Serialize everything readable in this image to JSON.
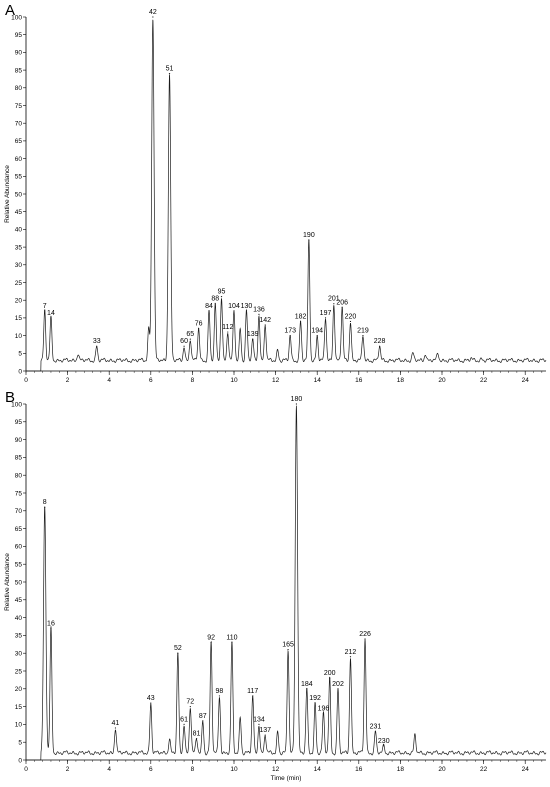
{
  "panels": [
    {
      "letter": "A",
      "ylabel": "Relative Abundance",
      "y_ticks": [
        0,
        5,
        10,
        15,
        20,
        25,
        30,
        35,
        40,
        45,
        50,
        55,
        60,
        65,
        70,
        75,
        80,
        85,
        90,
        95,
        100
      ],
      "x_ticks": [
        0,
        2,
        4,
        6,
        8,
        10,
        12,
        14,
        16,
        18,
        20,
        22,
        24
      ]
    },
    {
      "letter": "B",
      "ylabel": "Relative Abundance",
      "xlabel": "Time (min)",
      "y_ticks": [
        0,
        5,
        10,
        15,
        20,
        25,
        30,
        35,
        40,
        45,
        50,
        55,
        60,
        65,
        70,
        75,
        80,
        85,
        90,
        95,
        100
      ],
      "x_ticks": [
        0,
        2,
        4,
        6,
        8,
        10,
        12,
        14,
        16,
        18,
        20,
        22,
        24
      ]
    }
  ],
  "chart_data": [
    {
      "type": "line",
      "panel": "A",
      "xlim": [
        0,
        25
      ],
      "ylim": [
        0,
        100
      ],
      "ylabel": "Relative Abundance",
      "baseline": 3,
      "peaks": [
        {
          "x": 0.9,
          "y": 17,
          "label": "7"
        },
        {
          "x": 1.2,
          "y": 15,
          "label": "14"
        },
        {
          "x": 2.5,
          "y": 5,
          "label": ""
        },
        {
          "x": 3.4,
          "y": 7,
          "label": "33"
        },
        {
          "x": 5.9,
          "y": 12,
          "label": ""
        },
        {
          "x": 6.1,
          "y": 100,
          "label": "42"
        },
        {
          "x": 6.9,
          "y": 84,
          "label": "51"
        },
        {
          "x": 7.6,
          "y": 7,
          "label": "60"
        },
        {
          "x": 7.9,
          "y": 9,
          "label": "65"
        },
        {
          "x": 8.3,
          "y": 12,
          "label": "76"
        },
        {
          "x": 8.8,
          "y": 17,
          "label": "84"
        },
        {
          "x": 9.1,
          "y": 19,
          "label": "88"
        },
        {
          "x": 9.4,
          "y": 21,
          "label": "95"
        },
        {
          "x": 9.7,
          "y": 11,
          "label": "112"
        },
        {
          "x": 10.0,
          "y": 17,
          "label": "104"
        },
        {
          "x": 10.3,
          "y": 12,
          "label": ""
        },
        {
          "x": 10.6,
          "y": 17,
          "label": "130"
        },
        {
          "x": 10.9,
          "y": 9,
          "label": "139"
        },
        {
          "x": 11.2,
          "y": 16,
          "label": "136"
        },
        {
          "x": 11.5,
          "y": 13,
          "label": "142"
        },
        {
          "x": 12.1,
          "y": 6,
          "label": ""
        },
        {
          "x": 12.7,
          "y": 10,
          "label": "173"
        },
        {
          "x": 13.2,
          "y": 14,
          "label": "182"
        },
        {
          "x": 13.6,
          "y": 37,
          "label": "190"
        },
        {
          "x": 14.0,
          "y": 10,
          "label": "194"
        },
        {
          "x": 14.4,
          "y": 15,
          "label": "197"
        },
        {
          "x": 14.8,
          "y": 19,
          "label": "201"
        },
        {
          "x": 15.2,
          "y": 18,
          "label": "206"
        },
        {
          "x": 15.6,
          "y": 14,
          "label": "220"
        },
        {
          "x": 16.2,
          "y": 10,
          "label": "219"
        },
        {
          "x": 17.0,
          "y": 7,
          "label": "228"
        },
        {
          "x": 18.6,
          "y": 5,
          "label": ""
        },
        {
          "x": 19.2,
          "y": 5,
          "label": ""
        },
        {
          "x": 19.8,
          "y": 5,
          "label": ""
        },
        {
          "x": 21.4,
          "y": 3.5,
          "label": ""
        },
        {
          "x": 21.9,
          "y": 3.5,
          "label": ""
        }
      ]
    },
    {
      "type": "line",
      "panel": "B",
      "xlim": [
        0,
        25
      ],
      "ylim": [
        0,
        100
      ],
      "xlabel": "Time (min)",
      "ylabel": "Relative Abundance",
      "baseline": 2,
      "peaks": [
        {
          "x": 0.9,
          "y": 71,
          "label": "8"
        },
        {
          "x": 1.2,
          "y": 37,
          "label": "16"
        },
        {
          "x": 4.3,
          "y": 9,
          "label": "41"
        },
        {
          "x": 6.0,
          "y": 16,
          "label": "43"
        },
        {
          "x": 6.9,
          "y": 6,
          "label": ""
        },
        {
          "x": 7.3,
          "y": 30,
          "label": "52"
        },
        {
          "x": 7.6,
          "y": 10,
          "label": "61"
        },
        {
          "x": 7.9,
          "y": 15,
          "label": "72"
        },
        {
          "x": 8.2,
          "y": 6,
          "label": "81"
        },
        {
          "x": 8.5,
          "y": 11,
          "label": "87"
        },
        {
          "x": 8.9,
          "y": 33,
          "label": "92"
        },
        {
          "x": 9.3,
          "y": 18,
          "label": "98"
        },
        {
          "x": 9.9,
          "y": 33,
          "label": "110"
        },
        {
          "x": 10.3,
          "y": 12,
          "label": ""
        },
        {
          "x": 10.9,
          "y": 18,
          "label": "117"
        },
        {
          "x": 11.2,
          "y": 10,
          "label": "134"
        },
        {
          "x": 11.5,
          "y": 7,
          "label": "137"
        },
        {
          "x": 12.1,
          "y": 8,
          "label": ""
        },
        {
          "x": 12.6,
          "y": 31,
          "label": "165"
        },
        {
          "x": 13.0,
          "y": 100,
          "label": "180"
        },
        {
          "x": 13.5,
          "y": 20,
          "label": "184"
        },
        {
          "x": 13.9,
          "y": 16,
          "label": "192"
        },
        {
          "x": 14.3,
          "y": 13,
          "label": "196"
        },
        {
          "x": 14.6,
          "y": 23,
          "label": "200"
        },
        {
          "x": 15.0,
          "y": 20,
          "label": "202"
        },
        {
          "x": 15.6,
          "y": 29,
          "label": "212"
        },
        {
          "x": 16.3,
          "y": 34,
          "label": "226"
        },
        {
          "x": 16.8,
          "y": 8,
          "label": "231"
        },
        {
          "x": 17.2,
          "y": 4,
          "label": "230"
        },
        {
          "x": 18.7,
          "y": 7,
          "label": ""
        }
      ]
    }
  ]
}
